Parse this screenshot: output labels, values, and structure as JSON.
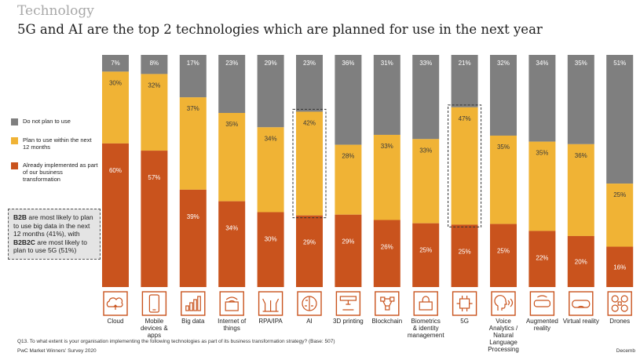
{
  "header": {
    "section": "Technology",
    "headline": "5G and AI are the top 2 technologies which are planned for use in the next year"
  },
  "colors": {
    "not_plan": "#7f7f7f",
    "plan": "#f0b335",
    "implemented": "#c9531d",
    "icon": "#c9531d",
    "highlight_border": "#333333"
  },
  "legend": [
    {
      "label": "Do not plan to use",
      "color": "#7f7f7f"
    },
    {
      "label": "Plan to use within the next 12 months",
      "color": "#f0b335"
    },
    {
      "label": "Already implemented as part of our business transformation",
      "color": "#c9531d"
    }
  ],
  "callout": {
    "b1": "B2B",
    "t1": " are most likely to plan to use big data in the next 12 months (41%), with ",
    "b2": "B2B2C",
    "t2": " are most likely to plan to use 5G (51%)"
  },
  "chart_data": {
    "type": "bar",
    "stacked": true,
    "ylim": [
      0,
      100
    ],
    "categories": [
      "Cloud",
      "Mobile devices & apps",
      "Big data",
      "Internet of things",
      "RPA/IPA",
      "AI",
      "3D printing",
      "Blockchain",
      "Biometrics & identity management",
      "5G",
      "Voice Analytics / Natural Language Processing",
      "Augmented reality",
      "Virtual reality",
      "Drones"
    ],
    "category_label_lines": [
      [
        "Cloud"
      ],
      [
        "Mobile",
        "devices &",
        "apps"
      ],
      [
        "Big data"
      ],
      [
        "Internet of",
        "things"
      ],
      [
        "RPA/IPA"
      ],
      [
        "AI"
      ],
      [
        "3D printing"
      ],
      [
        "Blockchain"
      ],
      [
        "Biometrics",
        "& identity",
        "management"
      ],
      [
        "5G"
      ],
      [
        "Voice",
        "Analytics /",
        "Natural",
        "Language",
        "Processing"
      ],
      [
        "Augmented",
        "reality"
      ],
      [
        "Virtual reality"
      ],
      [
        "Drones"
      ]
    ],
    "series": [
      {
        "name": "Already implemented as part of our business transformation",
        "values": [
          60,
          57,
          39,
          34,
          30,
          29,
          29,
          26,
          25,
          25,
          25,
          22,
          20,
          16
        ]
      },
      {
        "name": "Plan to use within the next 12 months",
        "values": [
          30,
          32,
          37,
          35,
          34,
          42,
          28,
          33,
          33,
          47,
          35,
          35,
          36,
          25
        ]
      },
      {
        "name": "Do not plan to use",
        "values": [
          7,
          8,
          17,
          23,
          29,
          23,
          36,
          31,
          33,
          21,
          32,
          34,
          35,
          51
        ]
      }
    ],
    "highlighted": [
      "AI",
      "5G"
    ],
    "icons": [
      "cloud-icon",
      "mobile-device-icon",
      "big-data-icon",
      "iot-icon",
      "rpa-icon",
      "ai-brain-icon",
      "3d-printer-icon",
      "blockchain-icon",
      "biometrics-icon",
      "5g-chip-icon",
      "voice-analytics-icon",
      "augmented-reality-icon",
      "virtual-reality-icon",
      "drones-icon"
    ]
  },
  "footer": {
    "question": "Q13. To what extent is your organisation implementing the following technologies as part of its business transformation strategy? (Base: 507)",
    "source": "PwC Market Winners' Survey 2020",
    "date": "Decemb"
  }
}
